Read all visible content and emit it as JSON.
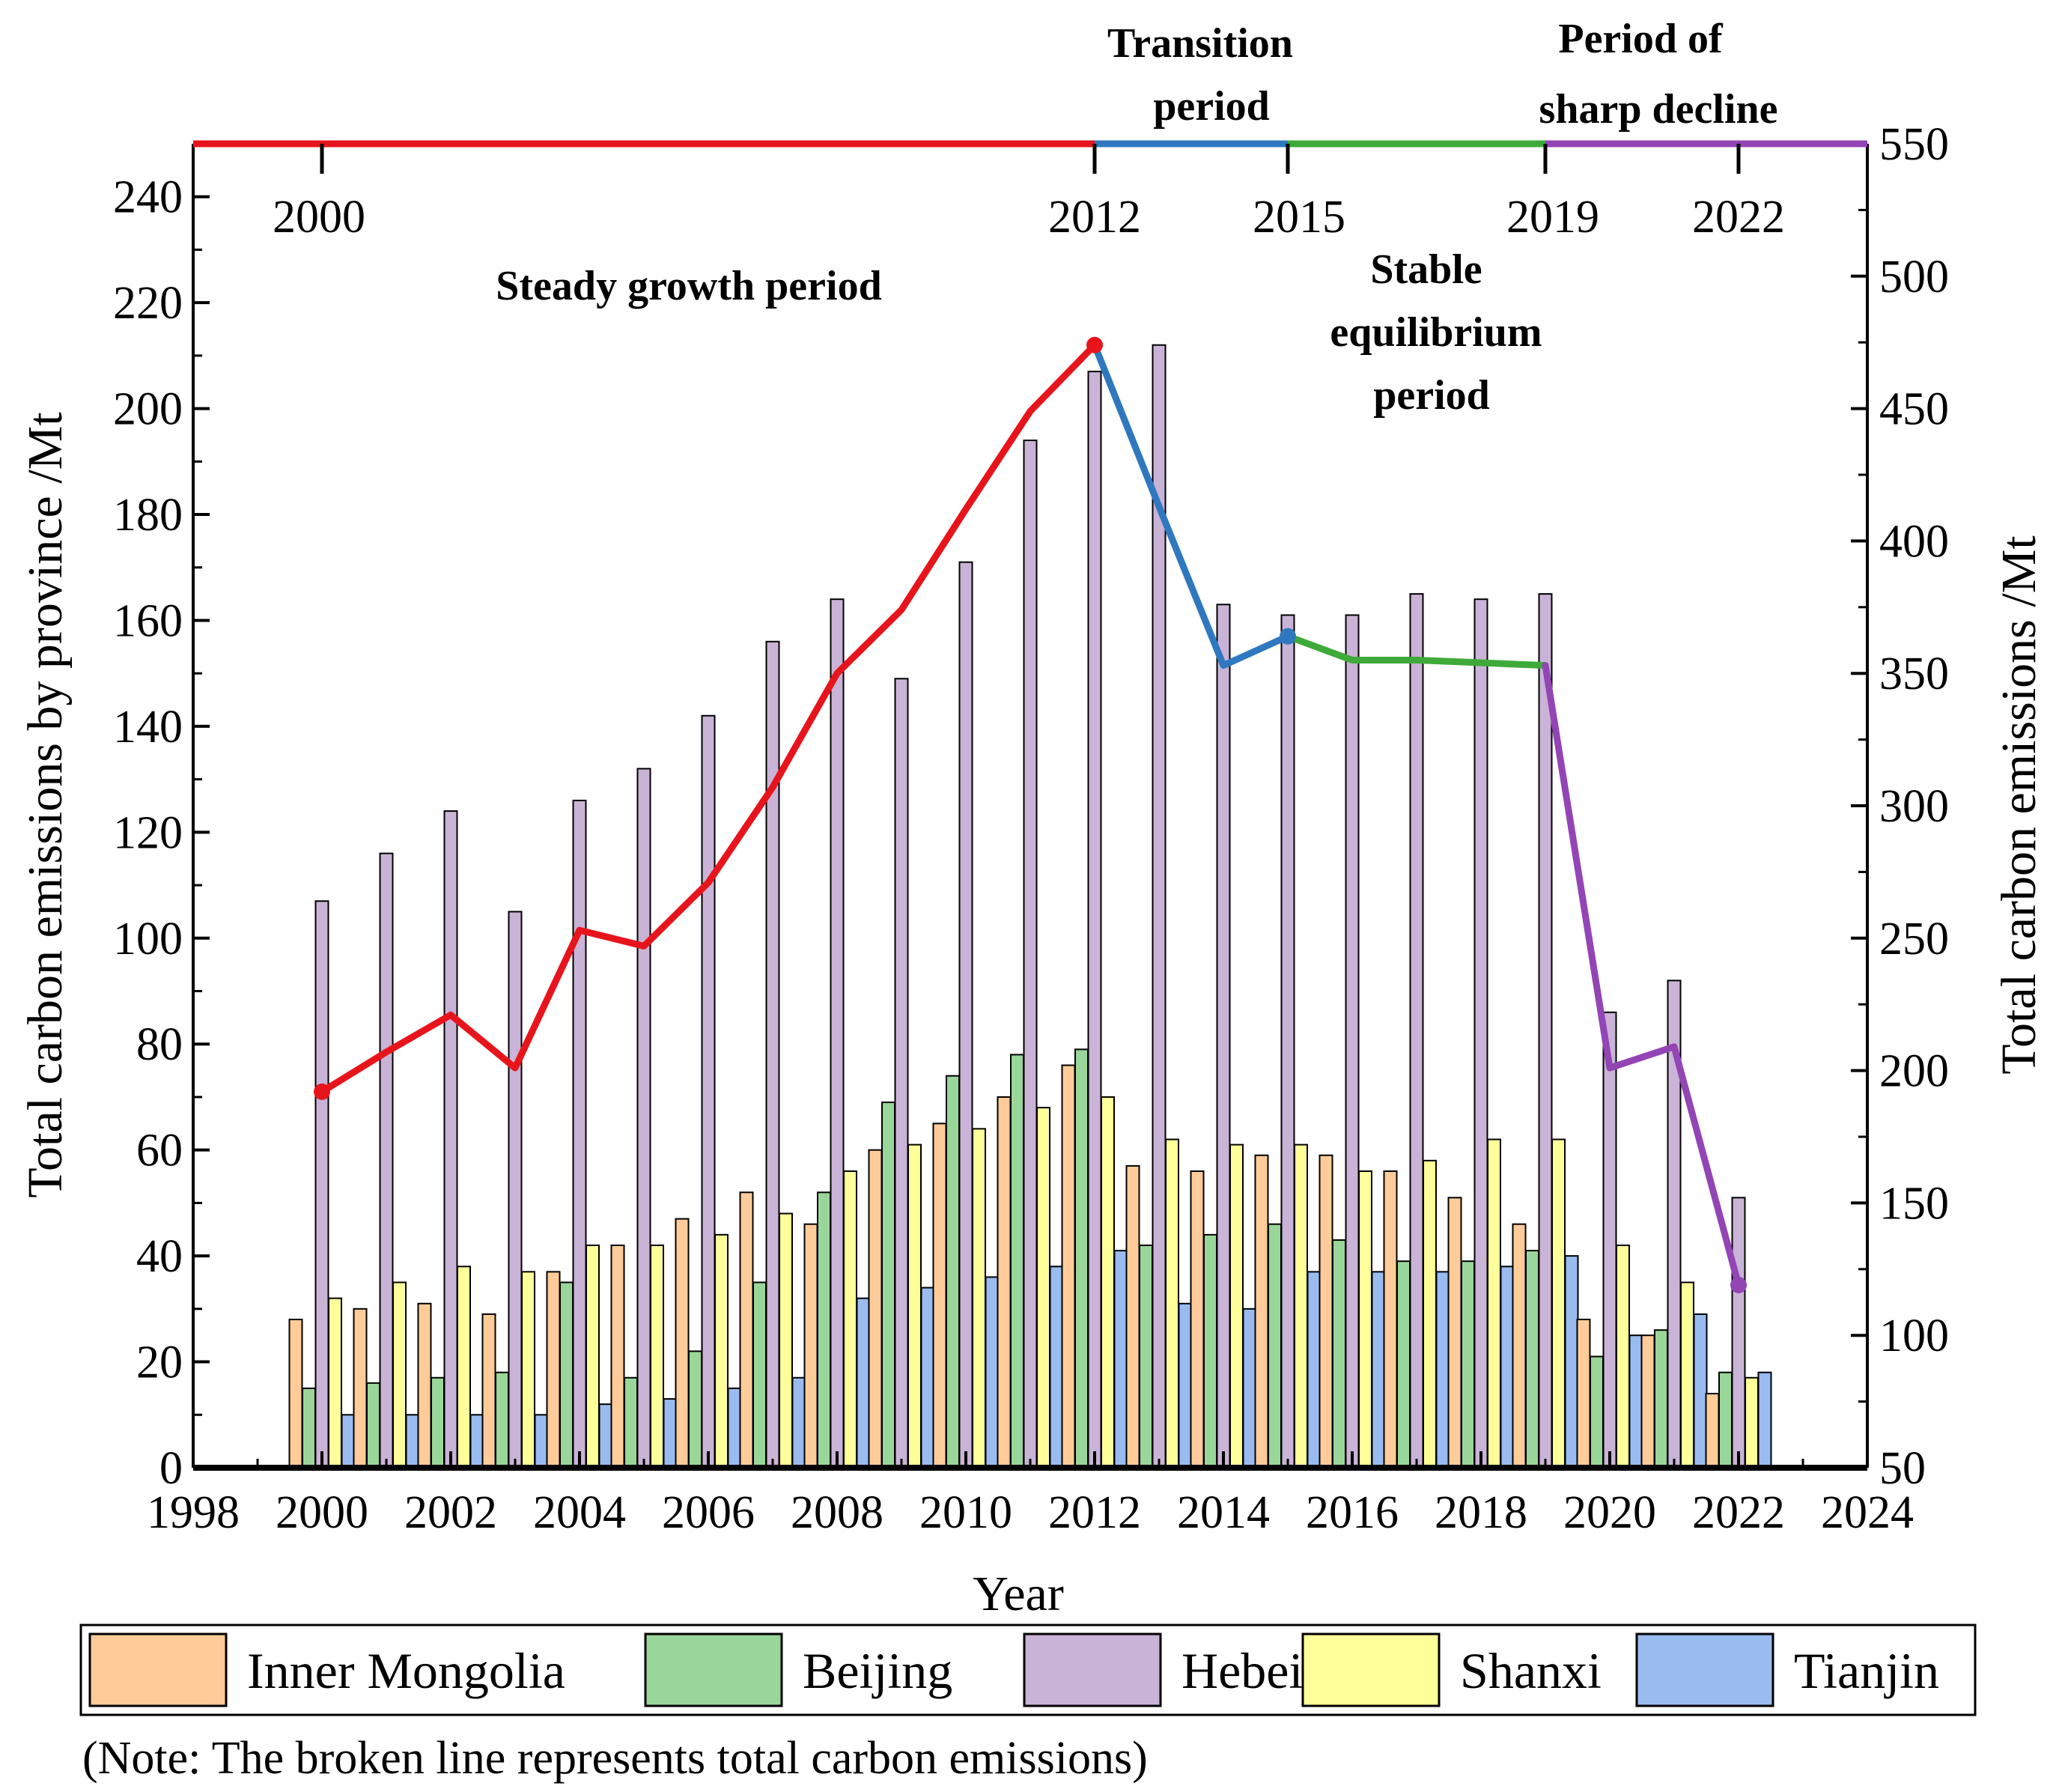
{
  "chart_data": {
    "type": "bar+line",
    "xlabel": "Year",
    "ylabel_left": "Total carbon emissions by province /Mt",
    "ylabel_right": "Total carbon emissions /Mt",
    "xlim": [
      1998,
      2024
    ],
    "ylim_left": [
      0,
      250
    ],
    "ylim_right": [
      50,
      550
    ],
    "x_ticks": [
      "1998",
      "2000",
      "2002",
      "2004",
      "2006",
      "2008",
      "2010",
      "2012",
      "2014",
      "2016",
      "2018",
      "2020",
      "2022",
      "2024"
    ],
    "y_left_ticks": [
      "0",
      "20",
      "40",
      "60",
      "80",
      "100",
      "120",
      "140",
      "160",
      "180",
      "200",
      "220",
      "240"
    ],
    "y_right_ticks": [
      "50",
      "100",
      "150",
      "200",
      "250",
      "300",
      "350",
      "400",
      "450",
      "500",
      "550"
    ],
    "years": [
      2000,
      2001,
      2002,
      2003,
      2004,
      2005,
      2006,
      2007,
      2008,
      2009,
      2010,
      2011,
      2012,
      2013,
      2014,
      2015,
      2016,
      2017,
      2018,
      2019,
      2020,
      2021,
      2022
    ],
    "series": [
      {
        "name": "Inner Mongolia",
        "color": "#FFCC99",
        "values": [
          28,
          30,
          31,
          29,
          37,
          42,
          47,
          52,
          46,
          60,
          65,
          70,
          76,
          57,
          56,
          59,
          59,
          56,
          51,
          46,
          28,
          25,
          14
        ]
      },
      {
        "name": "Beijing",
        "color": "#99D699",
        "values": [
          15,
          16,
          17,
          18,
          35,
          17,
          22,
          35,
          52,
          69,
          74,
          78,
          79,
          42,
          44,
          46,
          43,
          39,
          39,
          41,
          21,
          26,
          18
        ]
      },
      {
        "name": "Hebei",
        "color": "#C9B3D6",
        "values": [
          107,
          116,
          124,
          105,
          126,
          132,
          142,
          156,
          164,
          149,
          171,
          194,
          207,
          212,
          163,
          161,
          161,
          165,
          164,
          165,
          86,
          92,
          51
        ]
      },
      {
        "name": "Shanxi",
        "color": "#FFFF99",
        "values": [
          32,
          35,
          38,
          37,
          42,
          42,
          44,
          48,
          56,
          61,
          64,
          68,
          70,
          62,
          61,
          61,
          56,
          58,
          62,
          62,
          42,
          35,
          17
        ]
      },
      {
        "name": "Tianjin",
        "color": "#99BBF0",
        "values": [
          10,
          10,
          10,
          10,
          12,
          13,
          15,
          17,
          32,
          34,
          36,
          38,
          41,
          31,
          30,
          37,
          37,
          37,
          38,
          40,
          25,
          29,
          18
        ]
      }
    ],
    "total_line": {
      "name": "Total carbon emissions",
      "years": [
        2000,
        2001,
        2002,
        2003,
        2004,
        2005,
        2006,
        2007,
        2008,
        2009,
        2010,
        2011,
        2012,
        2013,
        2014,
        2015,
        2016,
        2017,
        2018,
        2019,
        2020,
        2021,
        2022
      ],
      "values": [
        192,
        207,
        221,
        201,
        253,
        247,
        271,
        307,
        350,
        374,
        412,
        449,
        474,
        413,
        353,
        364,
        355,
        355,
        354,
        353,
        201,
        209,
        119
      ],
      "segments": [
        {
          "from": 2000,
          "to": 2012,
          "color": "#E8141C"
        },
        {
          "from": 2012,
          "to": 2015,
          "color": "#2F78BF"
        },
        {
          "from": 2015,
          "to": 2019,
          "color": "#3EAA3A"
        },
        {
          "from": 2019,
          "to": 2022,
          "color": "#9344B5"
        }
      ],
      "markers": [
        {
          "year": 2000,
          "color": "#E8141C"
        },
        {
          "year": 2012,
          "color": "#E8141C"
        },
        {
          "year": 2015,
          "color": "#2F78BF"
        },
        {
          "year": 2022,
          "color": "#9344B5"
        }
      ]
    },
    "timeline": {
      "segments": [
        {
          "from": 1998,
          "to": 2012,
          "color": "#E8141C"
        },
        {
          "from": 2012,
          "to": 2015,
          "color": "#2F78BF"
        },
        {
          "from": 2015,
          "to": 2019,
          "color": "#3EAA3A"
        },
        {
          "from": 2019,
          "to": 2024,
          "color": "#9344B5"
        }
      ],
      "ticks": [
        "2000",
        "2012",
        "2015",
        "2019",
        "2022"
      ]
    },
    "periods": {
      "steady": "Steady growth period",
      "transition": [
        "Transition",
        "period"
      ],
      "stable": [
        "Stable",
        "equilibrium",
        "period"
      ],
      "decline": [
        "Period of",
        "sharp decline"
      ]
    },
    "legend": [
      "Inner Mongolia",
      "Beijing",
      "Hebei",
      "Shanxi",
      "Tianjin"
    ],
    "note": "(Note: The broken line represents total carbon emissions)"
  }
}
